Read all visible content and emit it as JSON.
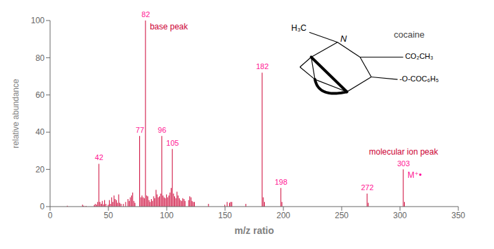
{
  "chart_data": {
    "type": "bar",
    "xlabel": "m/z ratio",
    "ylabel": "relative abundance",
    "x": [
      15,
      28,
      29,
      31,
      38,
      39,
      40,
      41,
      42,
      43,
      44,
      45,
      46,
      47,
      48,
      50,
      51,
      52,
      53,
      54,
      55,
      56,
      57,
      58,
      59,
      60,
      61,
      63,
      65,
      67,
      68,
      69,
      70,
      71,
      72,
      73,
      77,
      78,
      79,
      80,
      81,
      82,
      83,
      84,
      85,
      86,
      87,
      88,
      89,
      90,
      91,
      92,
      93,
      94,
      95,
      96,
      97,
      98,
      99,
      100,
      101,
      102,
      103,
      104,
      105,
      106,
      107,
      108,
      109,
      110,
      111,
      112,
      113,
      114,
      115,
      116,
      119,
      120,
      121,
      122,
      123,
      124,
      136,
      150,
      152,
      154,
      155,
      156,
      168,
      182,
      183,
      184,
      198,
      199,
      272,
      273,
      303,
      304
    ],
    "values": [
      0.5,
      1.0,
      0.5,
      0.4,
      0.8,
      1.5,
      1.0,
      2.5,
      23,
      2.5,
      1.5,
      3.0,
      1.2,
      3.5,
      1.5,
      1.0,
      3.5,
      1.5,
      5.0,
      2.5,
      6.0,
      4.0,
      3.5,
      2.0,
      6.5,
      2.0,
      1.5,
      1.5,
      2.5,
      4.0,
      3.0,
      5.0,
      6.0,
      7.5,
      3.0,
      2.0,
      38,
      5.0,
      6.0,
      5.0,
      4.5,
      100,
      6.0,
      5.5,
      3.5,
      2.5,
      4.0,
      3.0,
      5.5,
      4.5,
      9.0,
      6.5,
      5.0,
      5.5,
      7.0,
      38,
      6.0,
      5.0,
      4.5,
      6.5,
      5.0,
      6.0,
      7.5,
      10.0,
      31,
      7.0,
      5.5,
      4.5,
      8.0,
      6.0,
      4.5,
      3.5,
      3.0,
      4.5,
      4.0,
      3.0,
      3.5,
      5.5,
      5.0,
      3.0,
      2.5,
      2.5,
      1.5,
      1.0,
      2.5,
      2.0,
      2.5,
      2.5,
      1.5,
      72,
      5.0,
      2.5,
      10,
      2.5,
      7,
      2.0,
      20,
      2.5
    ],
    "color": "#cc0033",
    "xlim": [
      0,
      350
    ],
    "ylim": [
      0,
      100
    ],
    "xticks": [
      0,
      50,
      100,
      150,
      200,
      250,
      300,
      350
    ],
    "yticks": [
      0,
      20,
      40,
      60,
      80,
      100
    ],
    "grid": false,
    "peak_labels": [
      {
        "text": "42",
        "x": 42,
        "y": 23,
        "color": "#ff1493"
      },
      {
        "text": "77",
        "x": 77,
        "y": 38,
        "color": "#ff1493"
      },
      {
        "text": "82",
        "x": 82,
        "y": 100,
        "color": "#ff1493"
      },
      {
        "text": "96",
        "x": 96,
        "y": 38,
        "color": "#ff1493"
      },
      {
        "text": "105",
        "x": 105,
        "y": 31,
        "color": "#ff1493"
      },
      {
        "text": "182",
        "x": 182,
        "y": 72,
        "color": "#ff1493"
      },
      {
        "text": "198",
        "x": 198,
        "y": 10,
        "color": "#ff1493"
      },
      {
        "text": "272",
        "x": 272,
        "y": 7,
        "color": "#ff1493"
      },
      {
        "text": "303",
        "x": 303,
        "y": 20,
        "color": "#ff1493"
      }
    ],
    "annotations": [
      {
        "text": "base peak",
        "x": 82,
        "y": 100,
        "color": "#cc0033"
      },
      {
        "text": "M⁺•",
        "x": 303,
        "y": 20,
        "color": "#ff1493"
      },
      {
        "text": "molecular ion peak",
        "x": 303,
        "y": 20,
        "color": "#cc0033"
      }
    ],
    "structure": {
      "name": "cocaine",
      "labels": [
        "H₃C",
        "N",
        "CO₂CH₃",
        "-O-COC₆H₅"
      ]
    }
  }
}
